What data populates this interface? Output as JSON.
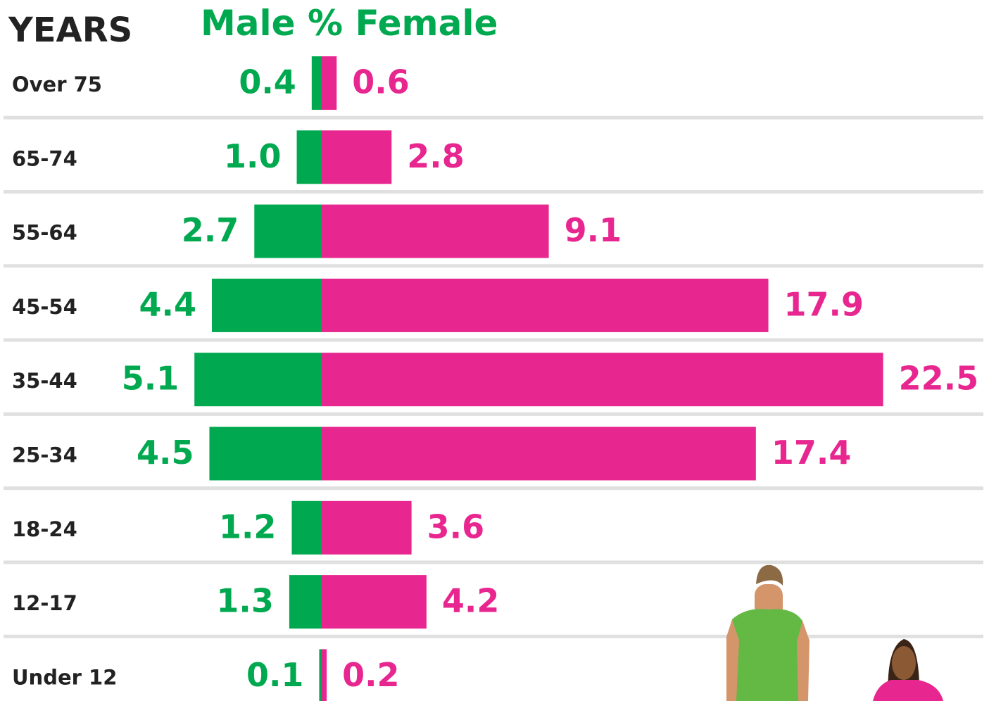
{
  "chart_data": {
    "type": "butterfly",
    "y_axis_label": "YEARS",
    "unit": "%",
    "categories": [
      "Over 75",
      "65-74",
      "55-64",
      "45-54",
      "35-44",
      "25-34",
      "18-24",
      "12-17",
      "Under 12"
    ],
    "series": [
      {
        "name": "Male",
        "color": "#00a94f",
        "side": "left",
        "values": [
          0.4,
          1.0,
          2.7,
          4.4,
          5.1,
          4.5,
          1.2,
          1.3,
          0.1
        ],
        "value_labels": [
          "0.4",
          "1.0",
          "2.7",
          "4.4",
          "5.1",
          "4.5",
          "1.2",
          "1.3",
          "0.1"
        ]
      },
      {
        "name": "Female",
        "color": "#e8268f",
        "side": "right",
        "values": [
          0.6,
          2.8,
          9.1,
          17.9,
          22.5,
          17.4,
          3.6,
          4.2,
          0.2
        ],
        "value_labels": [
          "0.6",
          "2.8",
          "9.1",
          "17.9",
          "22.5",
          "17.4",
          "3.6",
          "4.2",
          "0.2"
        ]
      }
    ]
  }
}
